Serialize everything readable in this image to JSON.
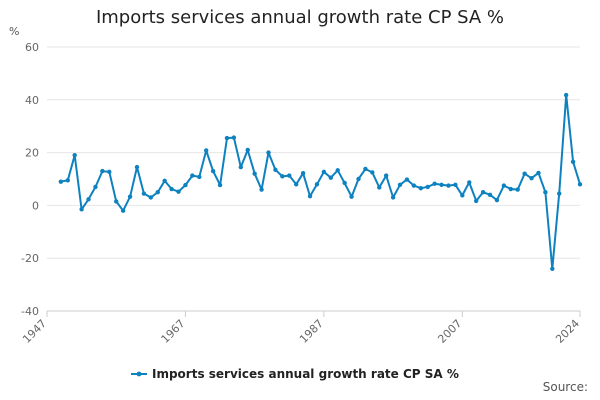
{
  "chart_data": {
    "type": "line",
    "title": "Imports services annual growth rate CP SA %",
    "ylabel": "%",
    "source_label": "Source:",
    "ylim": [
      -40,
      60
    ],
    "xlim": [
      1947,
      2024
    ],
    "y_ticks": [
      -40,
      -20,
      0,
      20,
      40,
      60
    ],
    "x_ticks": [
      1947,
      1967,
      1987,
      2007,
      2024
    ],
    "grid": "horizontal",
    "legend_position": "bottom",
    "color": "#0e82c1",
    "series": [
      {
        "name": "Imports services annual growth rate CP SA %",
        "x": [
          1949,
          1950,
          1951,
          1952,
          1953,
          1954,
          1955,
          1956,
          1957,
          1958,
          1959,
          1960,
          1961,
          1962,
          1963,
          1964,
          1965,
          1966,
          1967,
          1968,
          1969,
          1970,
          1971,
          1972,
          1973,
          1974,
          1975,
          1976,
          1977,
          1978,
          1979,
          1980,
          1981,
          1982,
          1983,
          1984,
          1985,
          1986,
          1987,
          1988,
          1989,
          1990,
          1991,
          1992,
          1993,
          1994,
          1995,
          1996,
          1997,
          1998,
          1999,
          2000,
          2001,
          2002,
          2003,
          2004,
          2005,
          2006,
          2007,
          2008,
          2009,
          2010,
          2011,
          2012,
          2013,
          2014,
          2015,
          2016,
          2017,
          2018,
          2019,
          2020,
          2021,
          2022,
          2023,
          2024
        ],
        "values": [
          9,
          9.5,
          19,
          -1.5,
          2.3,
          7,
          13,
          12.7,
          1.5,
          -2,
          3.3,
          14.5,
          4.5,
          3,
          5,
          9.3,
          6.2,
          5.2,
          7.7,
          11.3,
          10.8,
          20.8,
          13,
          7.7,
          25.5,
          25.7,
          14.5,
          21,
          12,
          6,
          20,
          13.5,
          11,
          11.3,
          8,
          12.2,
          3.5,
          8,
          12.7,
          10.5,
          13.3,
          8.5,
          3.3,
          10,
          13.8,
          12.5,
          6.8,
          11.3,
          3,
          7.8,
          9.8,
          7.5,
          6.5,
          7,
          8.2,
          7.8,
          7.5,
          7.8,
          3.8,
          8.7,
          1.7,
          5,
          4,
          2,
          7.5,
          6.2,
          6,
          12,
          10.3,
          12.3,
          5,
          -24,
          4.5,
          41.8,
          16.5,
          8
        ]
      }
    ]
  }
}
